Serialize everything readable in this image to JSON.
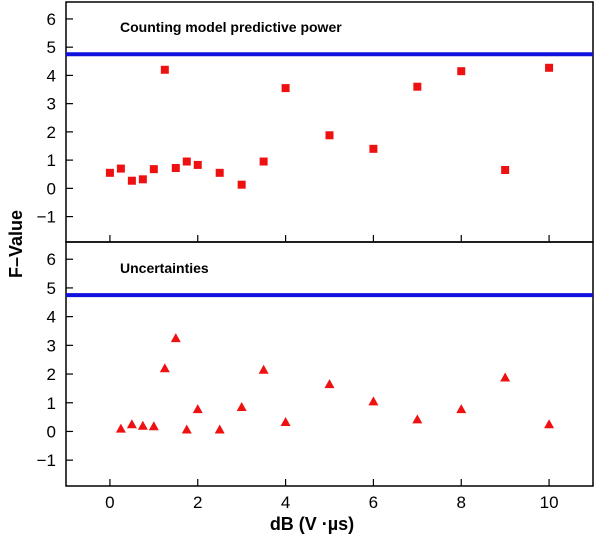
{
  "chart_data": {
    "type": "scatter",
    "xlabel": "dB (V ·µs)",
    "ylabel": "F–Value",
    "xlim": [
      -1,
      11
    ],
    "x_ticks": [
      0,
      2,
      4,
      6,
      8,
      10
    ],
    "panels": [
      {
        "title": "Counting model predictive power",
        "ylim": [
          -1.9,
          6.6
        ],
        "y_ticks": [
          -1,
          0,
          1,
          2,
          3,
          4,
          5,
          6
        ],
        "y_tick_labels": [
          "−1",
          "0",
          "1",
          "2",
          "3",
          "4",
          "5",
          "6"
        ],
        "reference_line": 4.75,
        "marker": "square",
        "series": [
          {
            "x": [
              0,
              0.25,
              0.5,
              0.75,
              1,
              1.25,
              1.5,
              1.75,
              2,
              2.5,
              3,
              3.5,
              4,
              5,
              6,
              7,
              8,
              9,
              10
            ],
            "y": [
              0.55,
              0.7,
              0.27,
              0.32,
              0.68,
              4.2,
              0.72,
              0.95,
              0.83,
              0.55,
              0.13,
              0.95,
              3.55,
              1.88,
              1.4,
              3.6,
              4.15,
              0.65,
              4.27
            ]
          }
        ]
      },
      {
        "title": "Uncertainties",
        "ylim": [
          -1.9,
          6.6
        ],
        "y_ticks": [
          -1,
          0,
          1,
          2,
          3,
          4,
          5,
          6
        ],
        "y_tick_labels": [
          "−1",
          "0",
          "1",
          "2",
          "3",
          "4",
          "5",
          "6"
        ],
        "reference_line": 4.75,
        "marker": "triangle",
        "series": [
          {
            "x": [
              0.25,
              0.5,
              0.75,
              1,
              1.25,
              1.5,
              1.75,
              2,
              2.5,
              3,
              3.5,
              4,
              5,
              6,
              7,
              8,
              9,
              10
            ],
            "y": [
              0.1,
              0.25,
              0.2,
              0.18,
              2.2,
              3.25,
              0.07,
              0.78,
              0.07,
              0.85,
              2.15,
              0.33,
              1.65,
              1.05,
              0.42,
              0.78,
              1.88,
              0.25
            ]
          }
        ]
      }
    ],
    "colors": {
      "markers": "#ee1111",
      "reference_line": "#1111dd",
      "axes": "#000000"
    },
    "grid": false
  }
}
